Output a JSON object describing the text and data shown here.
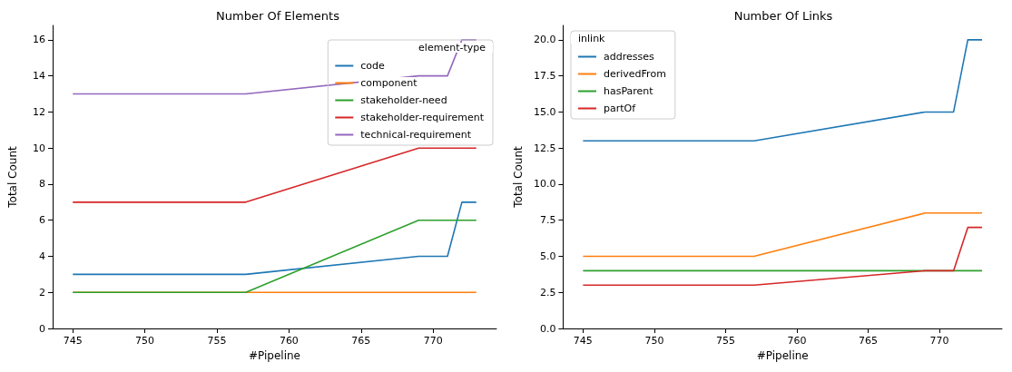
{
  "chart_data": [
    {
      "type": "line",
      "title": "Number Of Elements",
      "xlabel": "#Pipeline",
      "ylabel": "Total Count",
      "legend_title": "element-type",
      "legend": "top right",
      "x": [
        745,
        757,
        769,
        771,
        772,
        773
      ],
      "xlim": [
        743.6,
        774.4
      ],
      "xticks": [
        745,
        750,
        755,
        760,
        765,
        770
      ],
      "ylim": [
        0,
        16.8
      ],
      "yticks": [
        0,
        2,
        4,
        6,
        8,
        10,
        12,
        14,
        16
      ],
      "grid": false,
      "series": [
        {
          "name": "code",
          "color": "#1f77b4",
          "values": [
            3,
            3,
            4,
            4,
            7,
            7
          ]
        },
        {
          "name": "component",
          "color": "#ff7f0e",
          "values": [
            2,
            2,
            2,
            2,
            2,
            2
          ]
        },
        {
          "name": "stakeholder-need",
          "color": "#2ca02c",
          "values": [
            2,
            2,
            6,
            6,
            6,
            6
          ]
        },
        {
          "name": "stakeholder-requirement",
          "color": "#d62728",
          "values": [
            7,
            7,
            10,
            10,
            10,
            10
          ]
        },
        {
          "name": "technical-requirement",
          "color": "#9467bd",
          "values": [
            13,
            13,
            14,
            14,
            16,
            16
          ]
        }
      ]
    },
    {
      "type": "line",
      "title": "Number Of Links",
      "xlabel": "#Pipeline",
      "ylabel": "Total Count",
      "legend_title": "inlink",
      "legend": "top left",
      "x": [
        745,
        757,
        769,
        771,
        772,
        773
      ],
      "xlim": [
        743.6,
        774.4
      ],
      "xticks": [
        745,
        750,
        755,
        760,
        765,
        770
      ],
      "ylim": [
        0,
        21
      ],
      "yticks": [
        {
          "value": 0,
          "label": "0.0"
        },
        {
          "value": 2.5,
          "label": "2.5"
        },
        {
          "value": 5,
          "label": "5.0"
        },
        {
          "value": 7.5,
          "label": "7.5"
        },
        {
          "value": 10,
          "label": "10.0"
        },
        {
          "value": 12.5,
          "label": "12.5"
        },
        {
          "value": 15,
          "label": "15.0"
        },
        {
          "value": 17.5,
          "label": "17.5"
        },
        {
          "value": 20,
          "label": "20.0"
        }
      ],
      "grid": false,
      "series": [
        {
          "name": "addresses",
          "color": "#1f77b4",
          "values": [
            13,
            13,
            15,
            15,
            20,
            20
          ]
        },
        {
          "name": "derivedFrom",
          "color": "#ff7f0e",
          "values": [
            5,
            5,
            8,
            8,
            8,
            8
          ]
        },
        {
          "name": "hasParent",
          "color": "#2ca02c",
          "values": [
            4,
            4,
            4,
            4,
            4,
            4
          ]
        },
        {
          "name": "partOf",
          "color": "#d62728",
          "values": [
            3,
            3,
            4,
            4,
            7,
            7
          ]
        }
      ]
    }
  ]
}
